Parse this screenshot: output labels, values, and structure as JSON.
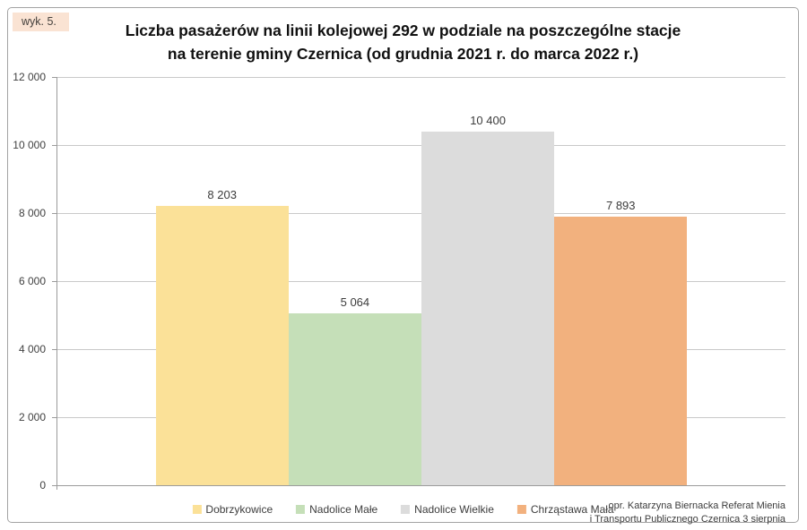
{
  "figure_label": "wyk. 5.",
  "header": {
    "title_line1": "Liczba pasażerów na linii kolejowej 292 w podziale na poszczególne stacje",
    "title_line2": "na terenie gminy Czernica (od grudnia 2021 r. do marca 2022 r.)"
  },
  "attribution": {
    "line1": "opr. Katarzyna Biernacka Referat Mienia",
    "line2": "i Transportu Publicznego Czernica 3 sierpnia"
  },
  "colors": {
    "badge_bg": "#fae3d3",
    "gridline": "#c9c9c9",
    "axis": "#9b9b9b",
    "text": "#3c3c3c",
    "frame_border": "#a3a3a3"
  },
  "chart_data": {
    "type": "bar",
    "title": "Liczba pasażerów na linii kolejowej 292 w podziale na poszczególne stacje na terenie gminy Czernica (od grudnia 2021 r. do marca 2022 r.)",
    "categories": [
      "Dobrzykowice",
      "Nadolice Małe",
      "Nadolice Wielkie",
      "Chrząstawa Mała"
    ],
    "values": [
      8203,
      5064,
      10400,
      7893
    ],
    "value_labels": [
      "8 203",
      "5 064",
      "10 400",
      "7 893"
    ],
    "bar_colors": [
      "#fbe198",
      "#c5dfb8",
      "#dcdcdc",
      "#f2b17e"
    ],
    "xlabel": "",
    "ylabel": "",
    "ylim": [
      0,
      12000
    ],
    "ytick_step": 2000,
    "yticks": [
      0,
      2000,
      4000,
      6000,
      8000,
      10000,
      12000
    ],
    "ytick_labels": [
      "0",
      "2 000",
      "4 000",
      "6 000",
      "8 000",
      "10 000",
      "12 000"
    ],
    "grid": true,
    "legend_position": "bottom"
  }
}
